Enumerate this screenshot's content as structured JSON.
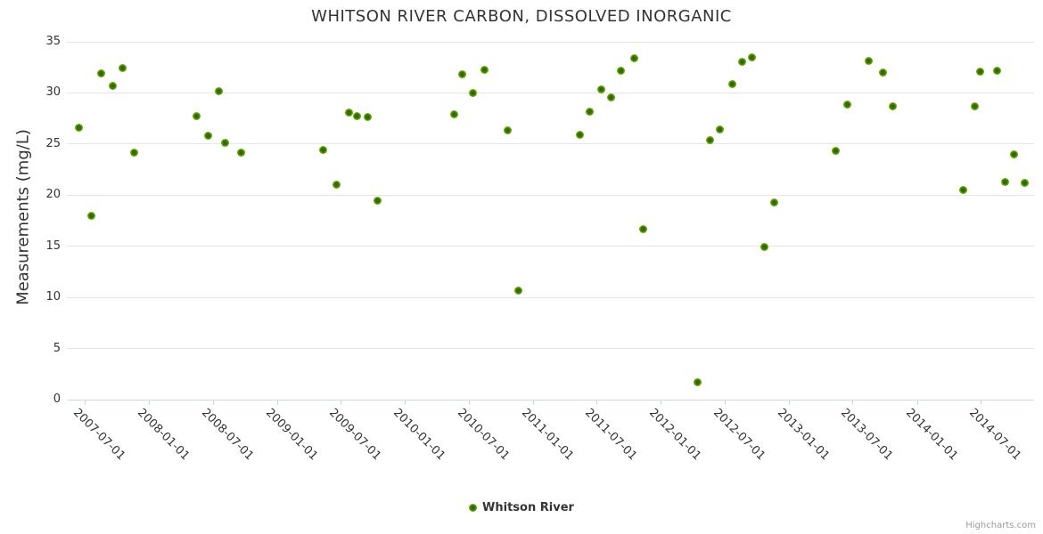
{
  "credits": "Highcharts.com",
  "colors": {
    "accent_green": "#7db80a",
    "marker_center_green": "#2c6700",
    "grid": "#e6e6e6",
    "axis_line": "#ccd6eb",
    "text": "#333333",
    "credits_text": "#999999",
    "background": "#ffffff"
  },
  "chart_data": {
    "type": "scatter",
    "title": "WHITSON RIVER CARBON, DISSOLVED INORGANIC",
    "xlabel": "",
    "ylabel": "Measurements (mg/L)",
    "ylim": [
      0,
      35
    ],
    "yticks": [
      0,
      5,
      10,
      15,
      20,
      25,
      30,
      35
    ],
    "xticks": [
      "2007-07-01",
      "2008-01-01",
      "2008-07-01",
      "2009-01-01",
      "2009-07-01",
      "2010-01-01",
      "2010-07-01",
      "2011-01-01",
      "2011-07-01",
      "2012-01-01",
      "2012-07-01",
      "2013-01-01",
      "2013-07-01",
      "2014-01-01",
      "2014-07-01"
    ],
    "x_range": [
      "2007-05-12",
      "2014-12-01"
    ],
    "grid": true,
    "legend_position": "bottom-center",
    "series": [
      {
        "name": "Whitson River",
        "color": "#7db80a",
        "marker_center": "#2c6700",
        "points": [
          [
            "2007-06-15",
            26.6
          ],
          [
            "2007-07-20",
            18.0
          ],
          [
            "2007-08-19",
            31.9
          ],
          [
            "2007-09-20",
            30.7
          ],
          [
            "2007-10-18",
            32.4
          ],
          [
            "2007-11-19",
            24.2
          ],
          [
            "2008-05-15",
            27.7
          ],
          [
            "2008-06-18",
            25.8
          ],
          [
            "2008-07-18",
            30.2
          ],
          [
            "2008-08-06",
            25.1
          ],
          [
            "2008-09-20",
            24.2
          ],
          [
            "2009-05-13",
            24.4
          ],
          [
            "2009-06-19",
            21.0
          ],
          [
            "2009-07-26",
            28.1
          ],
          [
            "2009-08-18",
            27.7
          ],
          [
            "2009-09-16",
            27.6
          ],
          [
            "2009-10-15",
            19.5
          ],
          [
            "2010-05-20",
            27.9
          ],
          [
            "2010-06-14",
            31.8
          ],
          [
            "2010-07-13",
            30.0
          ],
          [
            "2010-08-16",
            32.3
          ],
          [
            "2010-10-20",
            26.3
          ],
          [
            "2010-11-21",
            10.7
          ],
          [
            "2011-05-15",
            25.9
          ],
          [
            "2011-06-13",
            28.2
          ],
          [
            "2011-07-16",
            30.3
          ],
          [
            "2011-08-12",
            29.6
          ],
          [
            "2011-09-10",
            32.2
          ],
          [
            "2011-10-16",
            33.4
          ],
          [
            "2011-11-12",
            16.7
          ],
          [
            "2012-04-14",
            1.7
          ],
          [
            "2012-05-21",
            25.4
          ],
          [
            "2012-06-18",
            26.4
          ],
          [
            "2012-07-22",
            30.9
          ],
          [
            "2012-08-19",
            33.0
          ],
          [
            "2012-09-17",
            33.5
          ],
          [
            "2012-10-22",
            14.9
          ],
          [
            "2012-11-20",
            19.3
          ],
          [
            "2013-05-13",
            24.3
          ],
          [
            "2013-06-15",
            28.9
          ],
          [
            "2013-08-15",
            33.1
          ],
          [
            "2013-09-26",
            32.0
          ],
          [
            "2013-10-24",
            28.7
          ],
          [
            "2014-05-12",
            20.5
          ],
          [
            "2014-06-16",
            28.7
          ],
          [
            "2014-06-29",
            32.1
          ],
          [
            "2014-08-17",
            32.2
          ],
          [
            "2014-09-09",
            21.3
          ],
          [
            "2014-10-04",
            24.0
          ],
          [
            "2014-11-05",
            21.2
          ]
        ]
      }
    ]
  }
}
